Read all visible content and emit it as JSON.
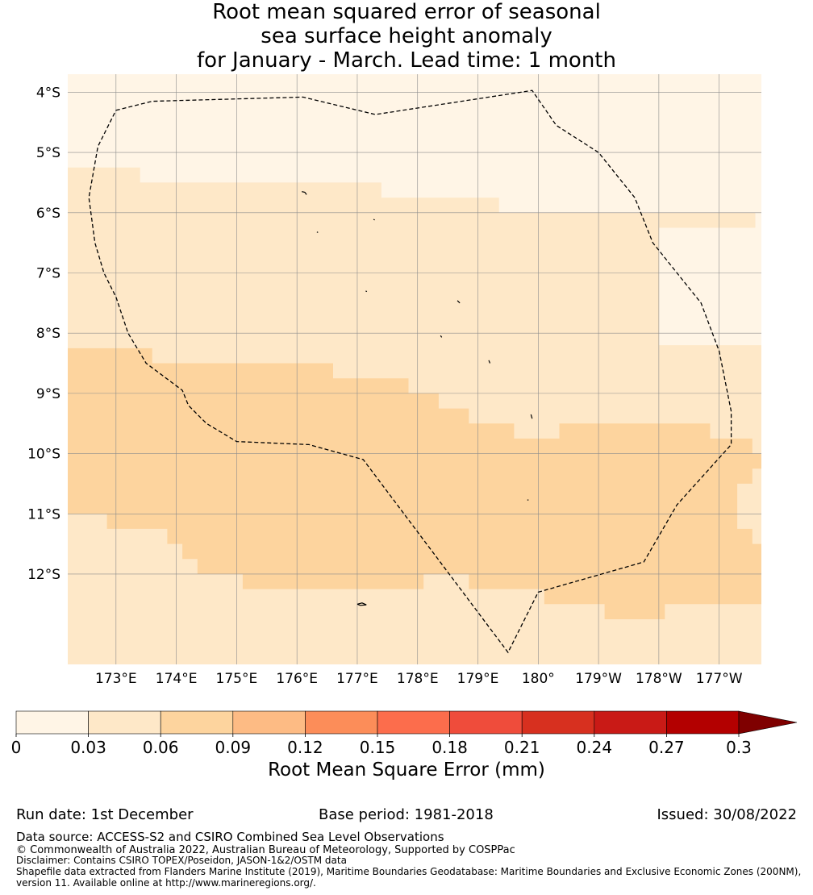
{
  "title": {
    "line1": "Root mean squared error of seasonal",
    "line2": "sea surface height anomaly",
    "line3": "for January - March. Lead time: 1 month"
  },
  "map": {
    "lon_range": [
      172.2,
      183.7
    ],
    "lat_range": [
      -13.5,
      -3.7
    ],
    "lat_ticks": [
      {
        "value": -4,
        "label": "4°S"
      },
      {
        "value": -5,
        "label": "5°S"
      },
      {
        "value": -6,
        "label": "6°S"
      },
      {
        "value": -7,
        "label": "7°S"
      },
      {
        "value": -8,
        "label": "8°S"
      },
      {
        "value": -9,
        "label": "9°S"
      },
      {
        "value": -10,
        "label": "10°S"
      },
      {
        "value": -11,
        "label": "11°S"
      },
      {
        "value": -12,
        "label": "12°S"
      }
    ],
    "lon_ticks": [
      {
        "value": 173,
        "label": "173°E"
      },
      {
        "value": 174,
        "label": "174°E"
      },
      {
        "value": 175,
        "label": "175°E"
      },
      {
        "value": 176,
        "label": "176°E"
      },
      {
        "value": 177,
        "label": "177°E"
      },
      {
        "value": 178,
        "label": "178°E"
      },
      {
        "value": 179,
        "label": "179°E"
      },
      {
        "value": 180,
        "label": "180°"
      },
      {
        "value": 181,
        "label": "179°W"
      },
      {
        "value": 182,
        "label": "178°W"
      },
      {
        "value": 183,
        "label": "177°W"
      }
    ],
    "rmse_regions": [
      {
        "band": 1,
        "rings": [
          [
            [
              172.2,
              -5.25
            ],
            [
              173.4,
              -5.25
            ],
            [
              173.4,
              -5.5
            ],
            [
              177.4,
              -5.5
            ],
            [
              177.4,
              -5.75
            ],
            [
              179.35,
              -5.75
            ],
            [
              179.35,
              -6.0
            ],
            [
              183.6,
              -6.0
            ],
            [
              183.6,
              -6.25
            ],
            [
              182.0,
              -6.25
            ],
            [
              182.0,
              -8.2
            ],
            [
              183.7,
              -8.2
            ],
            [
              183.7,
              -13.5
            ],
            [
              172.2,
              -13.5
            ]
          ]
        ]
      },
      {
        "band": 2,
        "rings": [
          [
            [
              172.2,
              -8.25
            ],
            [
              173.6,
              -8.25
            ],
            [
              173.6,
              -8.5
            ],
            [
              176.6,
              -8.5
            ],
            [
              176.6,
              -8.75
            ],
            [
              177.85,
              -8.75
            ],
            [
              177.85,
              -9.0
            ],
            [
              178.35,
              -9.0
            ],
            [
              178.35,
              -9.25
            ],
            [
              178.85,
              -9.25
            ],
            [
              178.85,
              -9.5
            ],
            [
              179.6,
              -9.5
            ],
            [
              179.6,
              -9.75
            ],
            [
              180.35,
              -9.75
            ],
            [
              180.35,
              -9.5
            ],
            [
              182.85,
              -9.5
            ],
            [
              182.85,
              -9.75
            ],
            [
              183.55,
              -9.75
            ],
            [
              183.55,
              -10.0
            ],
            [
              183.7,
              -10.0
            ],
            [
              183.7,
              -10.25
            ],
            [
              183.55,
              -10.25
            ],
            [
              183.55,
              -10.5
            ],
            [
              183.3,
              -10.5
            ],
            [
              183.3,
              -11.25
            ],
            [
              183.55,
              -11.25
            ],
            [
              183.55,
              -11.5
            ],
            [
              183.7,
              -11.5
            ],
            [
              183.7,
              -12.5
            ],
            [
              182.1,
              -12.5
            ],
            [
              182.1,
              -12.75
            ],
            [
              181.1,
              -12.75
            ],
            [
              181.1,
              -12.5
            ],
            [
              180.1,
              -12.5
            ],
            [
              180.1,
              -12.25
            ],
            [
              178.85,
              -12.25
            ],
            [
              178.85,
              -12.0
            ],
            [
              178.1,
              -12.0
            ],
            [
              178.1,
              -12.25
            ],
            [
              175.1,
              -12.25
            ],
            [
              175.1,
              -12.0
            ],
            [
              174.35,
              -12.0
            ],
            [
              174.35,
              -11.75
            ],
            [
              174.1,
              -11.75
            ],
            [
              174.1,
              -11.5
            ],
            [
              173.85,
              -11.5
            ],
            [
              173.85,
              -11.25
            ],
            [
              172.85,
              -11.25
            ],
            [
              172.85,
              -11.0
            ],
            [
              172.2,
              -11.0
            ]
          ]
        ]
      }
    ],
    "eez_boundary": [
      [
        173.0,
        -4.3
      ],
      [
        173.6,
        -4.15
      ],
      [
        176.1,
        -4.08
      ],
      [
        177.3,
        -4.37
      ],
      [
        179.9,
        -3.97
      ],
      [
        180.3,
        -4.55
      ],
      [
        181.0,
        -5.0
      ],
      [
        181.6,
        -5.75
      ],
      [
        181.9,
        -6.5
      ],
      [
        182.7,
        -7.5
      ],
      [
        183.0,
        -8.3
      ],
      [
        183.2,
        -9.3
      ],
      [
        183.2,
        -9.85
      ],
      [
        182.3,
        -10.85
      ],
      [
        181.75,
        -11.8
      ],
      [
        180.0,
        -12.3
      ],
      [
        179.5,
        -13.3
      ],
      [
        177.1,
        -10.1
      ],
      [
        176.2,
        -9.85
      ],
      [
        175.0,
        -9.8
      ],
      [
        174.5,
        -9.5
      ],
      [
        174.2,
        -9.2
      ],
      [
        174.1,
        -8.95
      ],
      [
        173.5,
        -8.5
      ],
      [
        173.2,
        -8.0
      ],
      [
        173.0,
        -7.4
      ],
      [
        172.8,
        -7.0
      ],
      [
        172.65,
        -6.5
      ],
      [
        172.55,
        -5.75
      ],
      [
        172.7,
        -4.9
      ],
      [
        173.0,
        -4.3
      ]
    ],
    "islands": [
      [
        [
          176.08,
          -5.65
        ],
        [
          176.13,
          -5.66
        ],
        [
          176.16,
          -5.7
        ]
      ],
      [
        [
          176.33,
          -6.32
        ],
        [
          176.35,
          -6.33
        ]
      ],
      [
        [
          177.27,
          -6.11
        ],
        [
          177.29,
          -6.12
        ]
      ],
      [
        [
          177.14,
          -7.3
        ],
        [
          177.16,
          -7.31
        ]
      ],
      [
        [
          178.66,
          -7.46
        ],
        [
          178.7,
          -7.5
        ]
      ],
      [
        [
          178.38,
          -8.04
        ],
        [
          178.4,
          -8.07
        ]
      ],
      [
        [
          179.18,
          -8.45
        ],
        [
          179.2,
          -8.5
        ]
      ],
      [
        [
          179.88,
          -9.35
        ],
        [
          179.9,
          -9.42
        ]
      ],
      [
        [
          179.82,
          -10.77
        ],
        [
          179.84,
          -10.77
        ]
      ],
      [
        [
          177.0,
          -12.5
        ],
        [
          177.08,
          -12.48
        ],
        [
          177.15,
          -12.51
        ],
        [
          177.05,
          -12.52
        ],
        [
          177.0,
          -12.5
        ]
      ]
    ]
  },
  "colorbar": {
    "colors": [
      "#fff5e6",
      "#fee8c8",
      "#fdd49e",
      "#fdbb84",
      "#fc8d59",
      "#fc6d4c",
      "#ef4c3b",
      "#d7301f",
      "#c91a16",
      "#b30000",
      "#7f0000"
    ],
    "ticks": [
      "0",
      "0.03",
      "0.06",
      "0.09",
      "0.12",
      "0.15",
      "0.18",
      "0.21",
      "0.24",
      "0.27",
      "0.3"
    ],
    "label": "Root Mean Square Error (mm)"
  },
  "footer": {
    "run_date": "Run date: 1st December",
    "base_period": "Base period: 1981-2018",
    "issued": "Issued: 30/08/2022",
    "data_source": "Data source: ACCESS-S2 and CSIRO Combined Sea Level Observations",
    "copyright": "© Commonwealth of Australia 2022, Australian Bureau of Meteorology, Supported by COSPPac",
    "disclaimer": "Disclaimer: Contains CSIRO TOPEX/Poseidon, JASON-1&2/OSTM data",
    "shapefile_line1": "Shapefile data extracted from Flanders Marine Institute (2019), Maritime Boundaries Geodatabase: Maritime Boundaries and Exclusive Economic Zones (200NM),",
    "shapefile_line2": "version 11. Available online at http://www.marineregions.org/."
  }
}
